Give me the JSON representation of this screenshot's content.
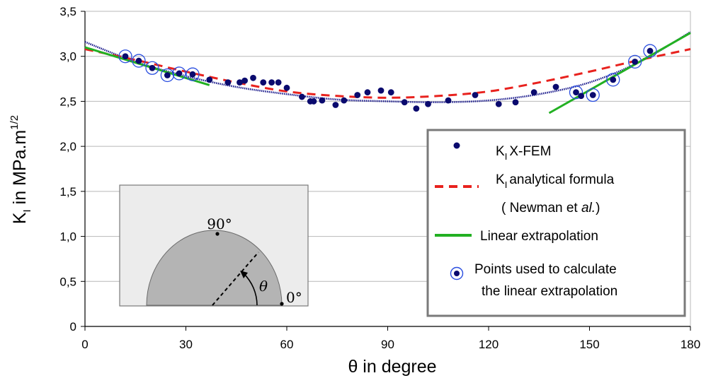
{
  "chart_data": {
    "type": "scatter",
    "xlabel": "θ in degree",
    "ylabel": {
      "main": "K",
      "sub": "I",
      "rest": " in MPa.m",
      "sup": "1/2"
    },
    "xlim": [
      0,
      180
    ],
    "ylim": [
      0,
      3.5
    ],
    "x_ticks": [
      0,
      30,
      60,
      90,
      120,
      150,
      180
    ],
    "y_tick_values": [
      0,
      0.5,
      1.0,
      1.5,
      2.0,
      2.5,
      3.0,
      3.5
    ],
    "y_tick_labels": [
      "0",
      "0,5",
      "1,0",
      "1,5",
      "2,0",
      "2,5",
      "3,0",
      "3,5"
    ],
    "grid": "horizontal",
    "legend_position": "bottom-right",
    "series": [
      {
        "name": "X-FEM",
        "legend_label": {
          "main": "K",
          "sub": "I",
          "rest": " X-FEM"
        },
        "kind": "points",
        "color": "#0a0a6e",
        "x": [
          12,
          16,
          20,
          24.5,
          28,
          32,
          37,
          42.5,
          46,
          47.5,
          50,
          53,
          55.5,
          57.5,
          60,
          64.5,
          67,
          68,
          70.5,
          74.5,
          77,
          81,
          84,
          88,
          91,
          95,
          98.5,
          102,
          108,
          116,
          123,
          128,
          133.5,
          140,
          146,
          147.5,
          151,
          157,
          163.5,
          168
        ],
        "y": [
          3.0,
          2.95,
          2.87,
          2.79,
          2.81,
          2.8,
          2.74,
          2.71,
          2.71,
          2.73,
          2.76,
          2.71,
          2.71,
          2.71,
          2.65,
          2.55,
          2.5,
          2.5,
          2.51,
          2.46,
          2.51,
          2.57,
          2.6,
          2.62,
          2.6,
          2.49,
          2.42,
          2.47,
          2.51,
          2.57,
          2.47,
          2.49,
          2.6,
          2.66,
          2.6,
          2.56,
          2.57,
          2.74,
          2.94,
          3.06
        ]
      },
      {
        "name": "analytical formula",
        "legend_label": {
          "main": "K",
          "sub": "I",
          "rest": " analytical formula"
        },
        "legend_extra": "( Newman et al.)",
        "kind": "dashed-line",
        "color": "#e8221e",
        "x": [
          0,
          15,
          30,
          45,
          60,
          75,
          90,
          105,
          120,
          135,
          150,
          165,
          180
        ],
        "y": [
          3.08,
          2.96,
          2.83,
          2.71,
          2.61,
          2.56,
          2.54,
          2.56,
          2.61,
          2.71,
          2.83,
          2.96,
          3.08
        ]
      },
      {
        "name": "Trend",
        "kind": "dotted-line",
        "color": "#1a1a8c",
        "x": [
          0,
          15,
          30,
          45,
          60,
          75,
          90,
          105,
          120,
          135,
          150,
          165,
          180
        ],
        "y": [
          3.16,
          2.94,
          2.78,
          2.66,
          2.58,
          2.52,
          2.5,
          2.49,
          2.51,
          2.58,
          2.71,
          2.94,
          3.27
        ]
      },
      {
        "name": "Linear extrapolation",
        "kind": "line-segments",
        "color": "#22b022",
        "segments": [
          {
            "x": [
              0,
              37
            ],
            "y": [
              3.1,
              2.68
            ]
          },
          {
            "x": [
              138,
              180
            ],
            "y": [
              2.37,
              3.26
            ]
          }
        ]
      },
      {
        "name": "Points used to calculate the linear extrapolation",
        "kind": "ring-markers",
        "color": "#2a4ee0",
        "x": [
          12,
          16,
          20,
          24.5,
          28,
          32,
          146,
          151,
          157,
          163.5,
          168
        ],
        "y": [
          3.0,
          2.95,
          2.87,
          2.79,
          2.81,
          2.8,
          2.6,
          2.57,
          2.74,
          2.94,
          3.06
        ]
      }
    ],
    "legend": {
      "xfem_text": "X-FEM",
      "analytical_text": "analytical formula",
      "newman_text_a": "( Newman et",
      "newman_text_b": "al.",
      "newman_text_c": ")",
      "linear_text": "Linear extrapolation",
      "points_text_line1": "Points used to calculate",
      "points_text_line2": "the linear extrapolation",
      "k_main": "K",
      "k_sub": "I"
    },
    "inset": {
      "label_90": "90°",
      "label_0": "0°",
      "label_theta": "θ"
    }
  }
}
